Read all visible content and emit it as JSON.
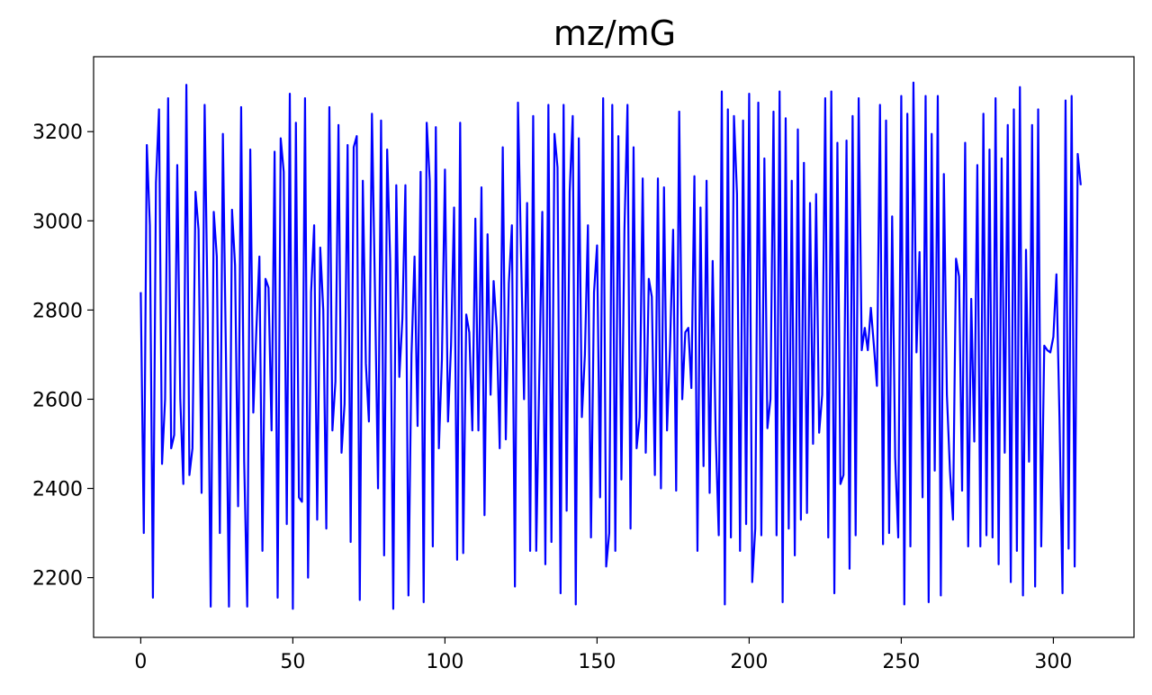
{
  "chart_data": {
    "type": "line",
    "title": "mz/mG",
    "xlabel": "",
    "ylabel": "",
    "xlim": [
      -15.5,
      326.5
    ],
    "ylim": [
      2066,
      3368
    ],
    "x_ticks": [
      0,
      50,
      100,
      150,
      200,
      250,
      300
    ],
    "y_ticks": [
      2200,
      2400,
      2600,
      2800,
      3000,
      3200
    ],
    "grid": false,
    "legend": "none",
    "line_color": "#0000ff",
    "series": [
      {
        "x_start": 0,
        "x_step": 1,
        "values": [
          2840,
          2300,
          3170,
          2990,
          2155,
          3085,
          3250,
          2455,
          2600,
          3275,
          2490,
          2520,
          3125,
          2600,
          2410,
          3305,
          2430,
          2490,
          3065,
          2980,
          2390,
          3260,
          2790,
          2135,
          3020,
          2920,
          2300,
          3195,
          2700,
          2135,
          3025,
          2900,
          2360,
          3255,
          2460,
          2135,
          3160,
          2570,
          2755,
          2920,
          2260,
          2870,
          2850,
          2530,
          3155,
          2155,
          3185,
          3110,
          2320,
          3285,
          2130,
          3220,
          2380,
          2370,
          3275,
          2200,
          2840,
          2990,
          2330,
          2940,
          2800,
          2310,
          3255,
          2530,
          2640,
          3215,
          2480,
          2590,
          3170,
          2280,
          3165,
          3190,
          2150,
          3090,
          2680,
          2550,
          3240,
          2840,
          2400,
          3225,
          2250,
          3160,
          2910,
          2130,
          3080,
          2650,
          2780,
          3080,
          2160,
          2700,
          2920,
          2540,
          3110,
          2145,
          3220,
          3090,
          2270,
          3210,
          2490,
          2690,
          3115,
          2550,
          2720,
          3030,
          2240,
          3220,
          2255,
          2790,
          2750,
          2530,
          3005,
          2530,
          3075,
          2340,
          2970,
          2610,
          2865,
          2760,
          2490,
          3165,
          2510,
          2860,
          2990,
          2180,
          3265,
          2930,
          2600,
          3040,
          2260,
          3235,
          2260,
          2650,
          3020,
          2230,
          3260,
          2280,
          3195,
          3120,
          2165,
          3260,
          2350,
          3065,
          3235,
          2140,
          3185,
          2560,
          2700,
          2990,
          2290,
          2840,
          2945,
          2380,
          3275,
          2225,
          2300,
          3260,
          2260,
          3190,
          2420,
          2980,
          3260,
          2310,
          3165,
          2490,
          2560,
          3095,
          2480,
          2870,
          2830,
          2430,
          3095,
          2400,
          3075,
          2530,
          2720,
          2980,
          2395,
          3245,
          2600,
          2750,
          2760,
          2625,
          3100,
          2260,
          3030,
          2450,
          3090,
          2390,
          2910,
          2520,
          2295,
          3290,
          2140,
          3250,
          2290,
          3235,
          3060,
          2260,
          3225,
          2320,
          3285,
          2190,
          2310,
          3265,
          2295,
          3140,
          2535,
          2600,
          3245,
          2295,
          3290,
          2145,
          3230,
          2310,
          3090,
          2250,
          3205,
          2330,
          3130,
          2345,
          3040,
          2500,
          3060,
          2525,
          2610,
          3275,
          2290,
          3290,
          2165,
          3175,
          2410,
          2430,
          3180,
          2220,
          3235,
          2295,
          3275,
          2710,
          2760,
          2710,
          2805,
          2720,
          2630,
          3260,
          2275,
          3225,
          2300,
          3010,
          2470,
          2290,
          3280,
          2140,
          3240,
          2270,
          3310,
          2705,
          2930,
          2380,
          3280,
          2145,
          3195,
          2440,
          3280,
          2160,
          3105,
          2610,
          2440,
          2330,
          2915,
          2875,
          2395,
          3175,
          2270,
          2825,
          2505,
          3125,
          2270,
          3240,
          2295,
          3160,
          2290,
          3275,
          2230,
          3140,
          2480,
          3215,
          2190,
          3250,
          2260,
          3300,
          2160,
          2935,
          2460,
          3215,
          2180,
          3250,
          2270,
          2720,
          2710,
          2705,
          2740,
          2880,
          2560,
          2165,
          3270,
          2265,
          3280,
          2225,
          3150,
          3080
        ]
      }
    ]
  }
}
